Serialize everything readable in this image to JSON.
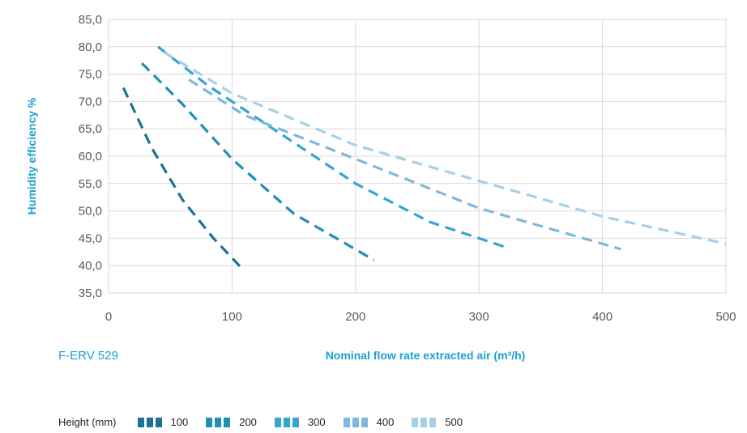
{
  "chart_data": {
    "type": "line",
    "title": "",
    "xlabel": "Nominal flow rate extracted air (m³/h)",
    "ylabel": "Humidity efficiency %",
    "model_label": "F-ERV 529",
    "xlim": [
      0,
      500
    ],
    "ylim": [
      35,
      85
    ],
    "x_ticks": [
      "0",
      "100",
      "200",
      "300",
      "400",
      "500"
    ],
    "y_ticks": [
      "35,0",
      "40,0",
      "45,0",
      "50,0",
      "55,0",
      "60,0",
      "65,0",
      "70,0",
      "75,0",
      "80,0",
      "85,0"
    ],
    "grid": true,
    "legend_title": "Height (mm)",
    "series": [
      {
        "name": "100",
        "color": "#1a7391",
        "x": [
          12,
          35,
          60,
          85,
          108
        ],
        "y": [
          72.5,
          61.5,
          52,
          45,
          39.5
        ]
      },
      {
        "name": "200",
        "color": "#1f8fb5",
        "x": [
          27,
          60,
          100,
          150,
          215
        ],
        "y": [
          77,
          69.5,
          59.5,
          49.5,
          41
        ]
      },
      {
        "name": "300",
        "color": "#33a6d0",
        "x": [
          40,
          80,
          130,
          200,
          260,
          320
        ],
        "y": [
          80,
          73,
          65.5,
          55,
          48,
          43.5
        ]
      },
      {
        "name": "400",
        "color": "#7cb9dd",
        "x": [
          65,
          110,
          200,
          300,
          415
        ],
        "y": [
          74,
          67.5,
          59.5,
          50.5,
          43
        ]
      },
      {
        "name": "500",
        "color": "#a8cfe8",
        "x": [
          45,
          100,
          200,
          300,
          400,
          500
        ],
        "y": [
          79,
          71.5,
          62,
          55.5,
          49,
          44
        ]
      }
    ]
  }
}
